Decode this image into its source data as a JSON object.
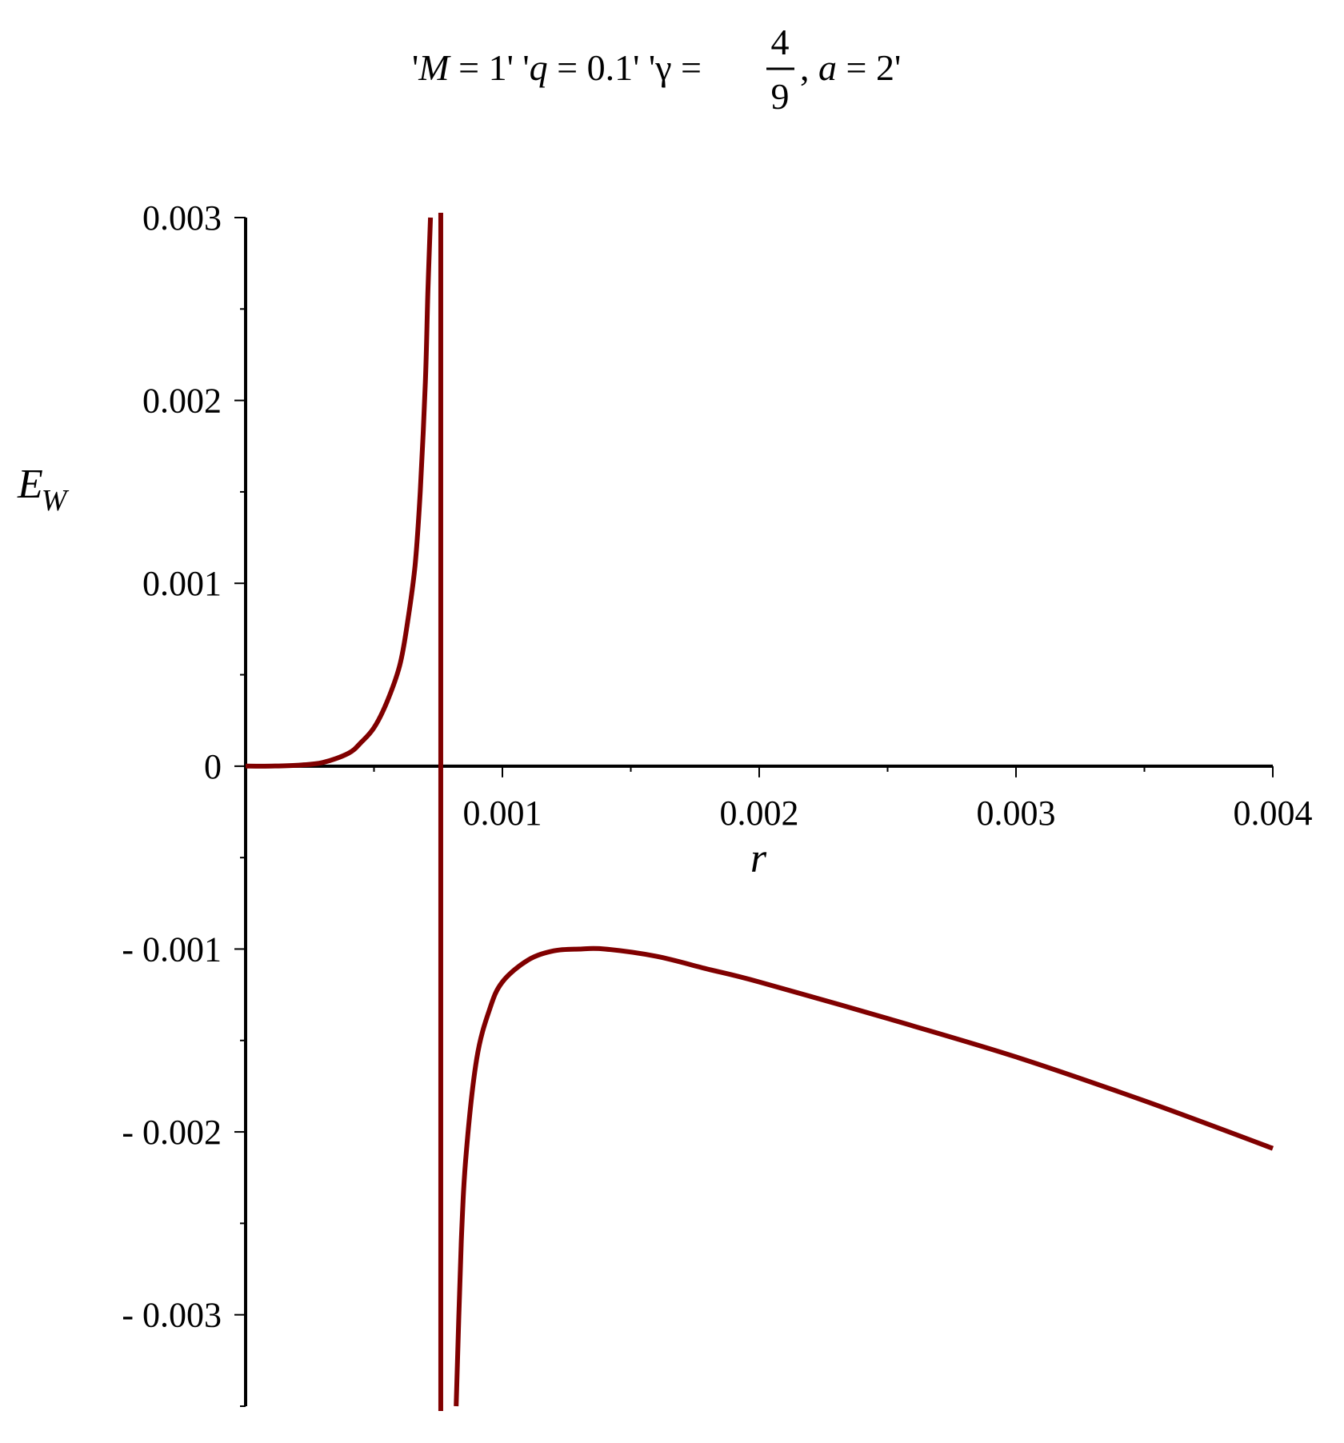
{
  "chart_data": {
    "type": "line",
    "title": {
      "part1_pre": "'",
      "part1_var": "M",
      "part1_post": " = 1' '",
      "part2_var": "q",
      "part2_post": " = 0.1' '",
      "part3_var": "γ",
      "part3_eq": " = ",
      "frac_num": "4",
      "frac_den": "9",
      "part4_pre": ", ",
      "part4_var": "a",
      "part4_post": " = 2'"
    },
    "xlabel": "r",
    "ylabel_main": "E",
    "ylabel_sub": "W",
    "xlim": [
      0,
      0.004
    ],
    "ylim": [
      -0.0035,
      0.003
    ],
    "x_ticks": [
      {
        "value": 0.001,
        "label": "0.001"
      },
      {
        "value": 0.002,
        "label": "0.002"
      },
      {
        "value": 0.003,
        "label": "0.003"
      },
      {
        "value": 0.004,
        "label": "0.004"
      }
    ],
    "y_ticks": [
      {
        "value": 0.003,
        "label": "0.003"
      },
      {
        "value": 0.002,
        "label": "0.002"
      },
      {
        "value": 0.001,
        "label": "0.001"
      },
      {
        "value": 0,
        "label": "0"
      },
      {
        "value": -0.001,
        "label": "- 0.001"
      },
      {
        "value": -0.002,
        "label": "- 0.002"
      },
      {
        "value": -0.003,
        "label": "- 0.003"
      }
    ],
    "x_minor_step": 0.0005,
    "y_minor_step": 0.0005,
    "series_color": "#800000",
    "asymptote_x": 0.00076,
    "series": [
      {
        "segment": "left",
        "x": [
          0,
          0.0001,
          0.0002,
          0.0003,
          0.0004,
          0.00045,
          0.0005,
          0.00055,
          0.0006,
          0.00063,
          0.00066,
          0.00068,
          0.0007,
          0.00071,
          0.00072
        ],
        "y": [
          0,
          5e-07,
          5e-06,
          2e-05,
          7e-05,
          0.00013,
          0.00021,
          0.00035,
          0.00055,
          0.00078,
          0.0011,
          0.0015,
          0.0021,
          0.0026,
          0.003
        ]
      },
      {
        "segment": "right",
        "x": [
          0.00082,
          0.00084,
          0.00086,
          0.0009,
          0.00095,
          0.001,
          0.0011,
          0.0012,
          0.0013,
          0.0014,
          0.0016,
          0.0018,
          0.002,
          0.0025,
          0.003,
          0.0035,
          0.004
        ],
        "y": [
          -0.0035,
          -0.0026,
          -0.0021,
          -0.0016,
          -0.00133,
          -0.00118,
          -0.00106,
          -0.00101,
          -0.001,
          -0.001,
          -0.00104,
          -0.00111,
          -0.00118,
          -0.00138,
          -0.00159,
          -0.00183,
          -0.00209
        ]
      }
    ]
  }
}
